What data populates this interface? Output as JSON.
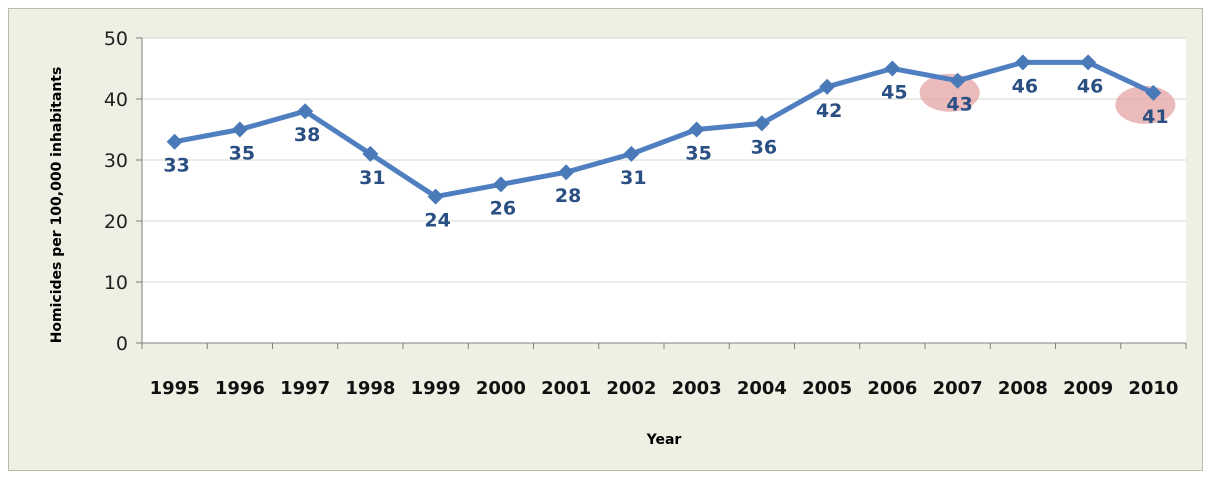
{
  "chart_data": {
    "type": "line",
    "categories": [
      "1995",
      "1996",
      "1997",
      "1998",
      "1999",
      "2000",
      "2001",
      "2002",
      "2003",
      "2004",
      "2005",
      "2006",
      "2007",
      "2008",
      "2009",
      "2010"
    ],
    "series": [
      {
        "values": [
          33,
          35,
          38,
          31,
          24,
          26,
          28,
          31,
          35,
          36,
          42,
          45,
          43,
          46,
          46,
          41
        ]
      }
    ],
    "xlabel": "Year",
    "ylabel": "Homicides per 100,000 inhabitants",
    "ylim": [
      0,
      50
    ],
    "yticks": [
      0,
      10,
      20,
      30,
      40,
      50
    ],
    "grid": true,
    "legend": "none",
    "highlighted_categories": [
      "2007",
      "2010"
    ],
    "colors": {
      "line": "#4f7fc0",
      "marker": "#4a79b8",
      "label": "#2a4f82",
      "highlight": "#e4a3a3",
      "background": "#eef0e4",
      "plot_background": "#ffffff",
      "grid": "#d6d8d0"
    }
  }
}
